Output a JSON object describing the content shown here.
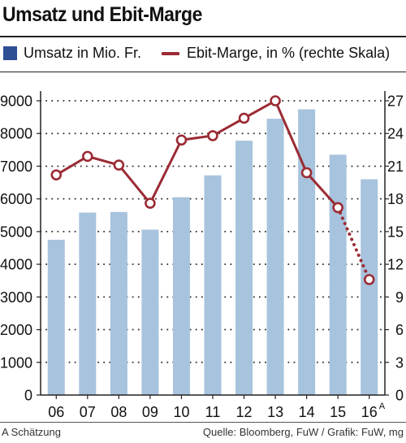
{
  "title": "Umsatz und Ebit-Marge",
  "legend": {
    "bar_label": "Umsatz in Mio. Fr.",
    "line_label": "Ebit-Marge, in % (rechte Skala)"
  },
  "footer": {
    "note": "A Schätzung",
    "source": "Quelle: Bloomberg, FuW  / Grafik: FuW, mg"
  },
  "colors": {
    "bar": "#a8c3dd",
    "bar_legend": "#2e4f94",
    "line": "#9b2b34",
    "grid": "#333333"
  },
  "chart_data": {
    "type": "bar",
    "categories": [
      "06",
      "07",
      "08",
      "09",
      "10",
      "11",
      "12",
      "13",
      "14",
      "15",
      "16"
    ],
    "category_superscripts": [
      "",
      "",
      "",
      "",
      "",
      "",
      "",
      "",
      "",
      "",
      "A"
    ],
    "series": [
      {
        "name": "Umsatz in Mio. Fr.",
        "type": "bar",
        "axis": "left",
        "values": [
          4750,
          5580,
          5600,
          5060,
          6050,
          6720,
          7780,
          8450,
          8740,
          7350,
          6600
        ]
      },
      {
        "name": "Ebit-Marge, in % (rechte Skala)",
        "type": "line",
        "axis": "right",
        "values": [
          20.2,
          21.9,
          21.1,
          17.6,
          23.4,
          23.8,
          25.4,
          27.0,
          20.4,
          17.2,
          10.6
        ],
        "dotted_from_index": 9
      }
    ],
    "y_left": {
      "ylim": [
        0,
        9000
      ],
      "ticks": [
        0,
        1000,
        2000,
        3000,
        4000,
        5000,
        6000,
        7000,
        8000,
        9000
      ]
    },
    "y_right": {
      "ylim": [
        0,
        27
      ],
      "ticks": [
        0,
        3,
        6,
        9,
        12,
        15,
        18,
        21,
        24,
        27
      ]
    },
    "grid": "horizontal-dotted",
    "legend_position": "top"
  }
}
